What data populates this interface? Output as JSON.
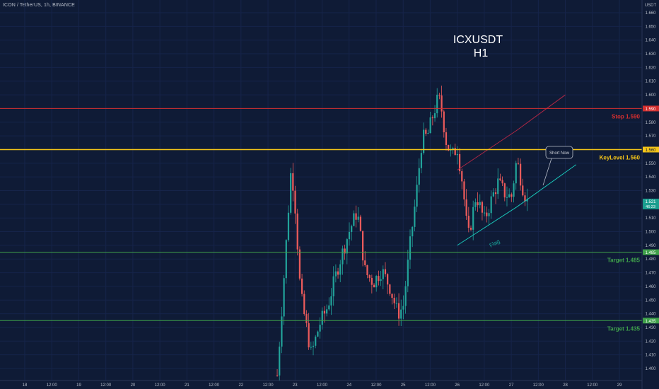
{
  "header": {
    "symbol": "ICON / TetherUS",
    "timeframe": "1h",
    "exchange": "BINANCE",
    "currency_label": "USDT"
  },
  "colors": {
    "background": "#0f1b36",
    "up": "#22a39a",
    "down": "#ec5b5b",
    "stop": "#d32f2f",
    "key": "#f5c518",
    "target": "#3fa14a",
    "current": "#1a9e8f",
    "channel_upper": "#b02745",
    "channel_lower": "#19c5b8"
  },
  "annotations": {
    "title_line1": "ICXUSDT",
    "title_line2": "H1",
    "stop_label": "Stop 1.590",
    "key_label": "KeyLevel 1.560",
    "target1_label": "Target 1.485",
    "target2_label": "Target 1.435",
    "callout": "Short Now",
    "pattern": "Flag"
  },
  "price_tags": {
    "stop": "1.590",
    "key": "1.560",
    "current": "1.521",
    "countdown": "46:23",
    "target1": "1.485",
    "target2": "1.435"
  },
  "chart_data": {
    "type": "candlestick",
    "title": "ICXUSDT H1",
    "y_axis": {
      "ylim": [
        1.393,
        1.667
      ],
      "ticks": [
        1.4,
        1.41,
        1.42,
        1.43,
        1.44,
        1.45,
        1.46,
        1.47,
        1.48,
        1.49,
        1.5,
        1.51,
        1.52,
        1.53,
        1.54,
        1.55,
        1.56,
        1.57,
        1.58,
        1.59,
        1.6,
        1.61,
        1.62,
        1.63,
        1.64,
        1.65,
        1.66
      ],
      "tick_labels": [
        "1.400",
        "1.410",
        "1.420",
        "1.430",
        "1.440",
        "1.450",
        "1.460",
        "1.470",
        "1.480",
        "1.490",
        "1.500",
        "1.510",
        "1.520",
        "1.530",
        "1.540",
        "1.550",
        "1.560",
        "1.570",
        "1.580",
        "1.590",
        "1.600",
        "1.610",
        "1.620",
        "1.630",
        "1.640",
        "1.650",
        "1.660"
      ]
    },
    "x_axis": {
      "ticks": [
        {
          "label": "18",
          "day": 18
        },
        {
          "label": "12:00",
          "day": 18.5
        },
        {
          "label": "19",
          "day": 19
        },
        {
          "label": "12:00",
          "day": 19.5
        },
        {
          "label": "20",
          "day": 20
        },
        {
          "label": "12:00",
          "day": 20.5
        },
        {
          "label": "21",
          "day": 21
        },
        {
          "label": "12:00",
          "day": 21.5
        },
        {
          "label": "22",
          "day": 22
        },
        {
          "label": "12:00",
          "day": 22.5
        },
        {
          "label": "23",
          "day": 23
        },
        {
          "label": "12:00",
          "day": 23.5
        },
        {
          "label": "24",
          "day": 24
        },
        {
          "label": "12:00",
          "day": 24.5
        },
        {
          "label": "25",
          "day": 25
        },
        {
          "label": "12:00",
          "day": 25.5
        },
        {
          "label": "26",
          "day": 26
        },
        {
          "label": "12:00",
          "day": 26.5
        },
        {
          "label": "27",
          "day": 27
        },
        {
          "label": "12:00",
          "day": 27.5
        },
        {
          "label": "28",
          "day": 28
        },
        {
          "label": "12:00",
          "day": 28.5
        },
        {
          "label": "29",
          "day": 29
        }
      ]
    },
    "levels": [
      {
        "name": "Stop",
        "value": 1.59
      },
      {
        "name": "KeyLevel",
        "value": 1.56
      },
      {
        "name": "Target",
        "value": 1.485
      },
      {
        "name": "Target",
        "value": 1.435
      }
    ],
    "current_price": 1.521,
    "channel": {
      "upper": [
        [
          26.0,
          1.545
        ],
        [
          27.1,
          1.574
        ],
        [
          28.0,
          1.6
        ]
      ],
      "lower": [
        [
          26.0,
          1.49
        ],
        [
          27.1,
          1.518
        ],
        [
          28.2,
          1.549
        ]
      ]
    },
    "candles_keypoints": [
      [
        22.67,
        1.395
      ],
      [
        22.8,
        1.47
      ],
      [
        22.93,
        1.548
      ],
      [
        23.0,
        1.52
      ],
      [
        23.1,
        1.455
      ],
      [
        23.3,
        1.41
      ],
      [
        23.45,
        1.432
      ],
      [
        23.6,
        1.445
      ],
      [
        23.8,
        1.475
      ],
      [
        24.0,
        1.5
      ],
      [
        24.15,
        1.515
      ],
      [
        24.3,
        1.47
      ],
      [
        24.45,
        1.463
      ],
      [
        24.6,
        1.472
      ],
      [
        24.75,
        1.46
      ],
      [
        24.9,
        1.44
      ],
      [
        25.0,
        1.445
      ],
      [
        25.12,
        1.488
      ],
      [
        25.25,
        1.53
      ],
      [
        25.35,
        1.568
      ],
      [
        25.45,
        1.57
      ],
      [
        25.55,
        1.585
      ],
      [
        25.65,
        1.598
      ],
      [
        25.7,
        1.592
      ],
      [
        25.8,
        1.565
      ],
      [
        25.9,
        1.555
      ],
      [
        26.0,
        1.562
      ],
      [
        26.1,
        1.535
      ],
      [
        26.2,
        1.495
      ],
      [
        26.35,
        1.527
      ],
      [
        26.5,
        1.508
      ],
      [
        26.62,
        1.522
      ],
      [
        26.75,
        1.536
      ],
      [
        26.88,
        1.528
      ],
      [
        27.0,
        1.525
      ],
      [
        27.1,
        1.553
      ],
      [
        27.2,
        1.534
      ],
      [
        27.3,
        1.521
      ]
    ]
  }
}
